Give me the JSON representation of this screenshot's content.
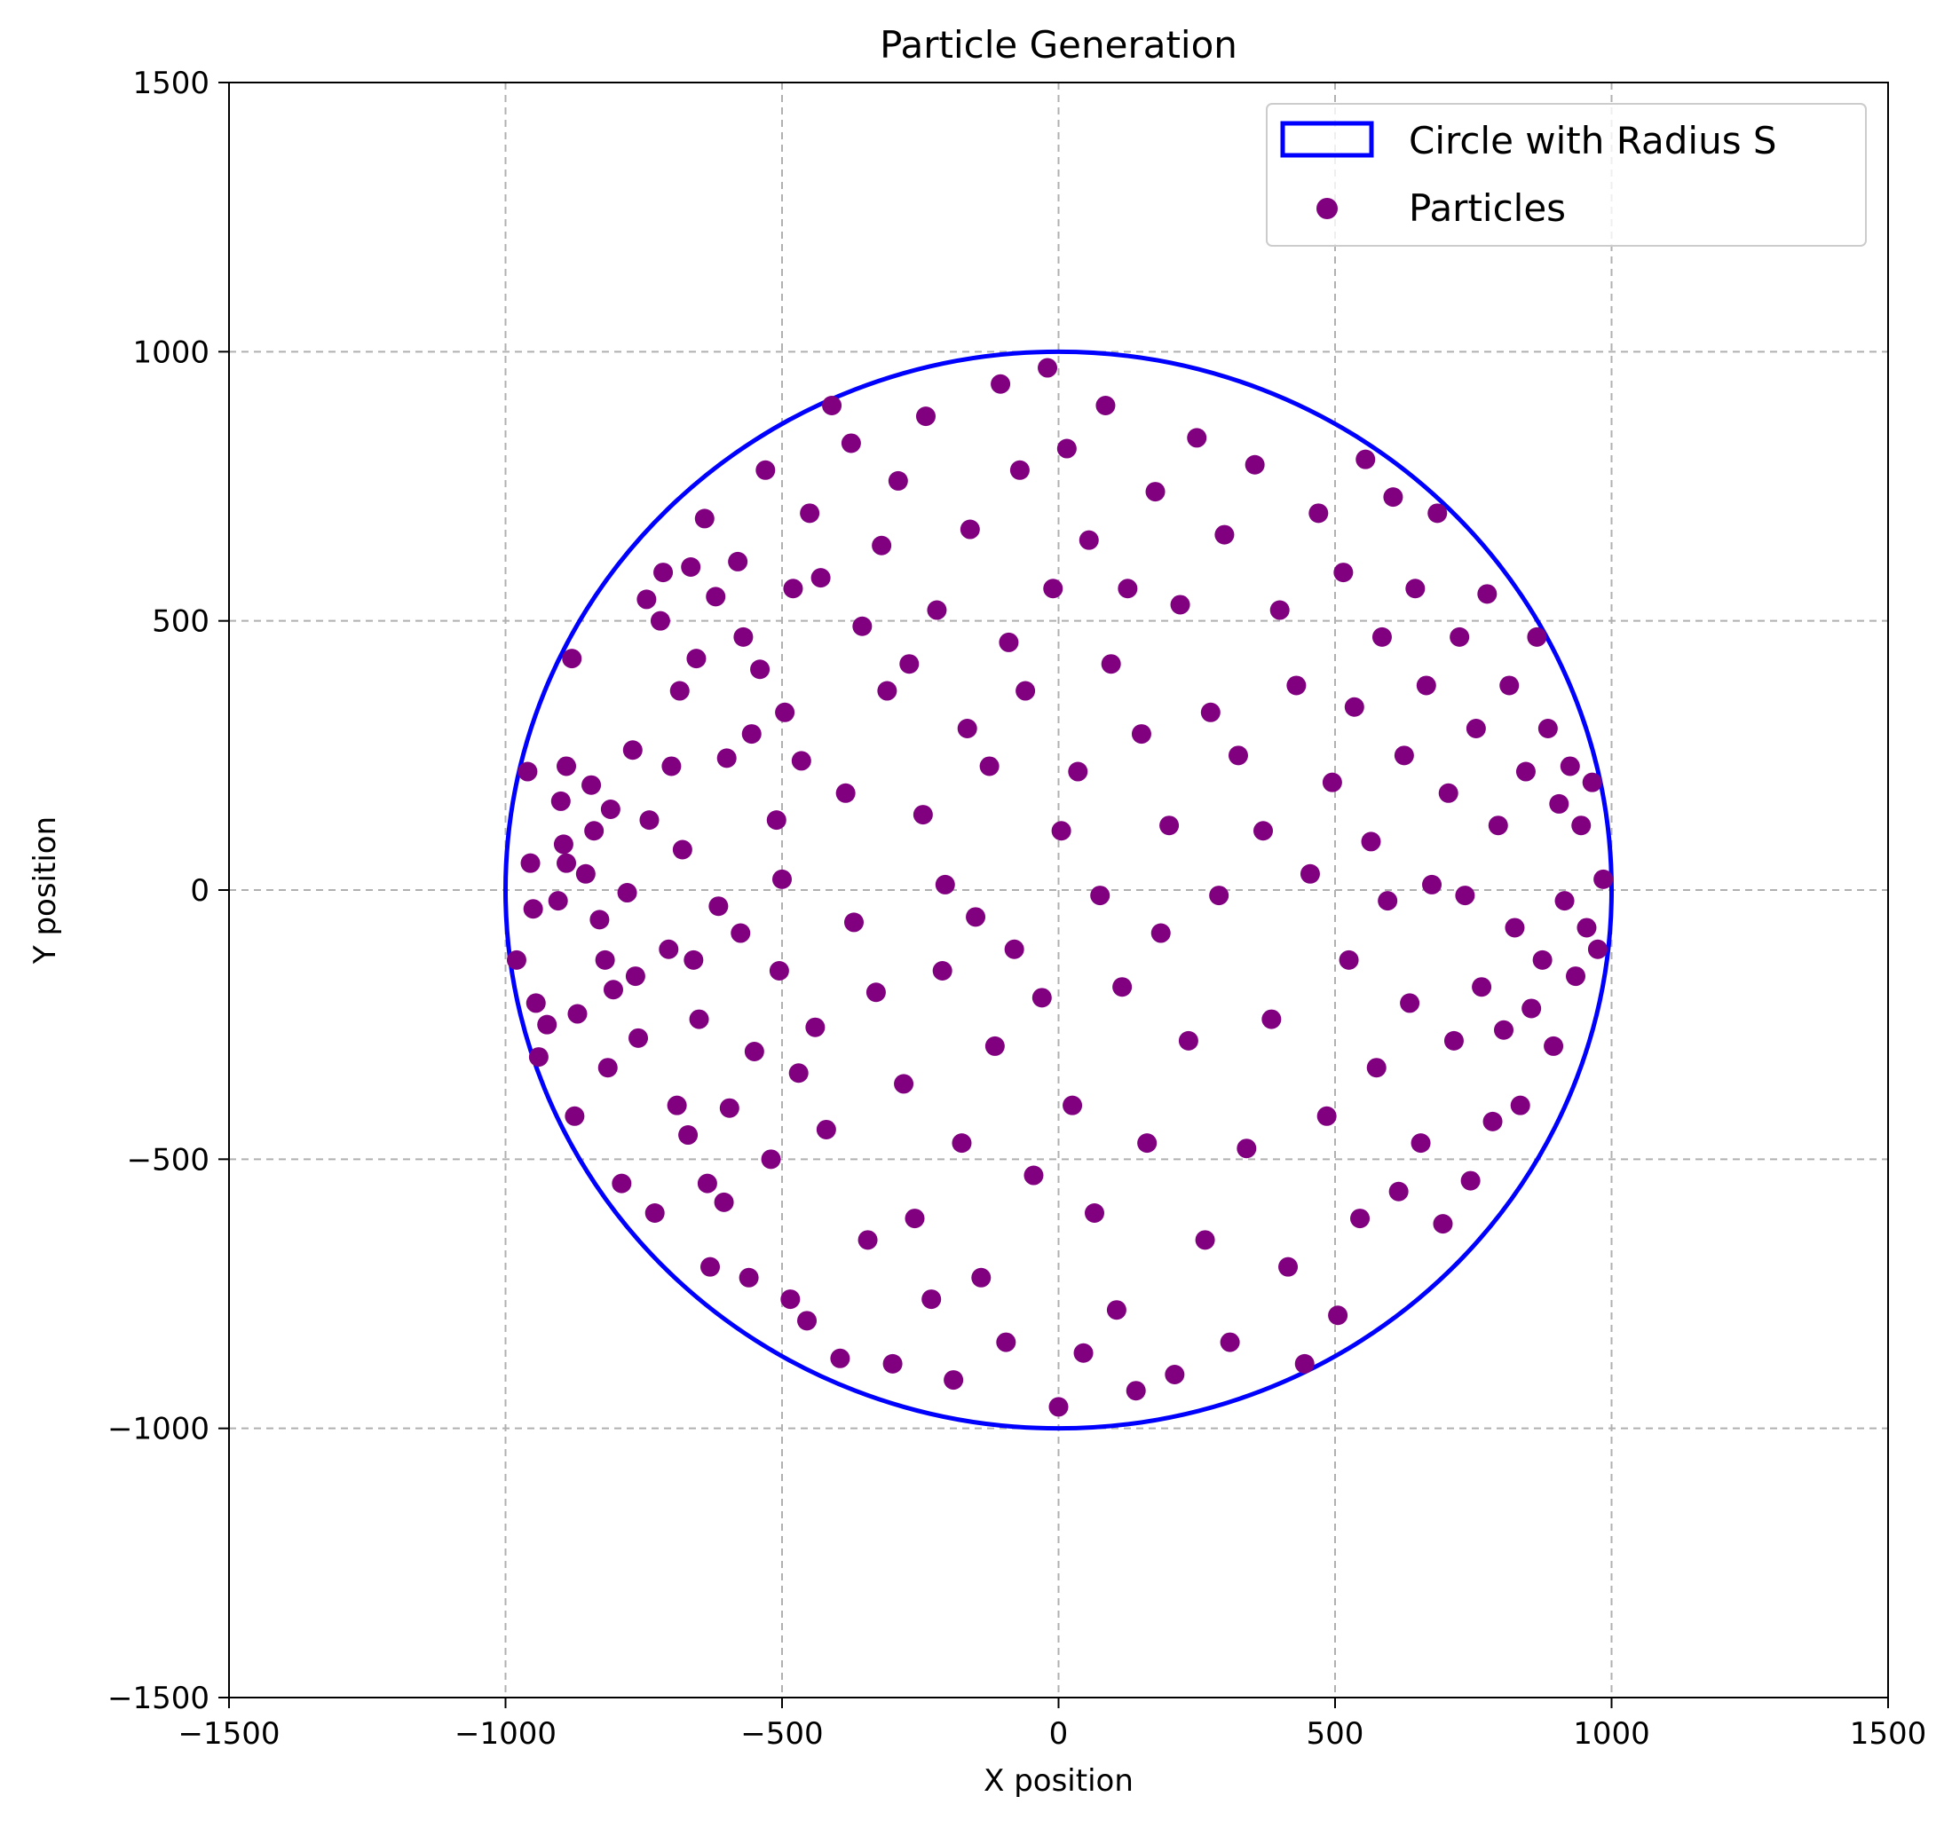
{
  "chart_data": {
    "type": "scatter",
    "title": "Particle Generation",
    "xlabel": "X position",
    "ylabel": "Y position",
    "xlim": [
      -1500,
      1500
    ],
    "ylim": [
      -1500,
      1500
    ],
    "xticks": [
      -1500,
      -1000,
      -500,
      0,
      500,
      1000,
      1500
    ],
    "yticks": [
      -1500,
      -1000,
      -500,
      0,
      500,
      1000,
      1500
    ],
    "xtick_labels": [
      "−1500",
      "−1000",
      "−500",
      "0",
      "500",
      "1000",
      "1500"
    ],
    "ytick_labels": [
      "−1500",
      "−1000",
      "−500",
      "0",
      "500",
      "1000",
      "1500"
    ],
    "grid": true,
    "legend_position": "top-right",
    "circle": {
      "name": "Circle with Radius S",
      "center": [
        0,
        0
      ],
      "radius": 1000,
      "color": "#0000ff"
    },
    "series": [
      {
        "name": "Particles",
        "color": "#800080",
        "marker": "circle",
        "points": [
          [
            -980,
            -130
          ],
          [
            -960,
            220
          ],
          [
            -955,
            50
          ],
          [
            -950,
            -35
          ],
          [
            -945,
            -210
          ],
          [
            -940,
            -310
          ],
          [
            -925,
            -250
          ],
          [
            -905,
            -20
          ],
          [
            -900,
            165
          ],
          [
            -895,
            85
          ],
          [
            -890,
            50
          ],
          [
            -890,
            230
          ],
          [
            -880,
            430
          ],
          [
            -875,
            -420
          ],
          [
            -870,
            -230
          ],
          [
            -855,
            30
          ],
          [
            -845,
            195
          ],
          [
            -840,
            110
          ],
          [
            -830,
            -55
          ],
          [
            -820,
            -130
          ],
          [
            -815,
            -330
          ],
          [
            -810,
            150
          ],
          [
            -805,
            -185
          ],
          [
            -790,
            -545
          ],
          [
            -780,
            -5
          ],
          [
            -770,
            260
          ],
          [
            -765,
            -160
          ],
          [
            -760,
            -275
          ],
          [
            -745,
            540
          ],
          [
            -740,
            130
          ],
          [
            -730,
            -600
          ],
          [
            -720,
            500
          ],
          [
            -715,
            590
          ],
          [
            -705,
            -110
          ],
          [
            -700,
            230
          ],
          [
            -690,
            -400
          ],
          [
            -685,
            370
          ],
          [
            -680,
            75
          ],
          [
            -670,
            -455
          ],
          [
            -665,
            600
          ],
          [
            -660,
            -130
          ],
          [
            -655,
            430
          ],
          [
            -650,
            -240
          ],
          [
            -640,
            690
          ],
          [
            -635,
            -545
          ],
          [
            -630,
            -700
          ],
          [
            -620,
            545
          ],
          [
            -615,
            -30
          ],
          [
            -605,
            -580
          ],
          [
            -600,
            245
          ],
          [
            -595,
            -405
          ],
          [
            -580,
            610
          ],
          [
            -575,
            -80
          ],
          [
            -570,
            470
          ],
          [
            -560,
            -720
          ],
          [
            -555,
            290
          ],
          [
            -550,
            -300
          ],
          [
            -540,
            410
          ],
          [
            -530,
            780
          ],
          [
            -520,
            -500
          ],
          [
            -510,
            130
          ],
          [
            -505,
            -150
          ],
          [
            -500,
            20
          ],
          [
            -495,
            330
          ],
          [
            -485,
            -760
          ],
          [
            -480,
            560
          ],
          [
            -470,
            -340
          ],
          [
            -465,
            240
          ],
          [
            -455,
            -800
          ],
          [
            -450,
            700
          ],
          [
            -440,
            -255
          ],
          [
            -430,
            580
          ],
          [
            -420,
            -445
          ],
          [
            -410,
            900
          ],
          [
            -395,
            -870
          ],
          [
            -385,
            180
          ],
          [
            -375,
            830
          ],
          [
            -370,
            -60
          ],
          [
            -355,
            490
          ],
          [
            -345,
            -650
          ],
          [
            -330,
            -190
          ],
          [
            -320,
            640
          ],
          [
            -310,
            370
          ],
          [
            -300,
            -880
          ],
          [
            -290,
            760
          ],
          [
            -280,
            -360
          ],
          [
            -270,
            420
          ],
          [
            -260,
            -610
          ],
          [
            -245,
            140
          ],
          [
            -240,
            880
          ],
          [
            -230,
            -760
          ],
          [
            -220,
            520
          ],
          [
            -210,
            -150
          ],
          [
            -205,
            10
          ],
          [
            -190,
            -910
          ],
          [
            -175,
            -470
          ],
          [
            -165,
            300
          ],
          [
            -160,
            670
          ],
          [
            -150,
            -50
          ],
          [
            -140,
            -720
          ],
          [
            -125,
            230
          ],
          [
            -115,
            -290
          ],
          [
            -105,
            940
          ],
          [
            -95,
            -840
          ],
          [
            -90,
            460
          ],
          [
            -80,
            -110
          ],
          [
            -70,
            780
          ],
          [
            -60,
            370
          ],
          [
            -45,
            -530
          ],
          [
            -30,
            -200
          ],
          [
            -20,
            970
          ],
          [
            -10,
            560
          ],
          [
            0,
            -960
          ],
          [
            5,
            110
          ],
          [
            15,
            820
          ],
          [
            25,
            -400
          ],
          [
            35,
            220
          ],
          [
            45,
            -860
          ],
          [
            55,
            650
          ],
          [
            65,
            -600
          ],
          [
            75,
            -10
          ],
          [
            85,
            900
          ],
          [
            95,
            420
          ],
          [
            105,
            -780
          ],
          [
            115,
            -180
          ],
          [
            125,
            560
          ],
          [
            140,
            -930
          ],
          [
            150,
            290
          ],
          [
            160,
            -470
          ],
          [
            175,
            740
          ],
          [
            185,
            -80
          ],
          [
            200,
            120
          ],
          [
            210,
            -900
          ],
          [
            220,
            530
          ],
          [
            235,
            -280
          ],
          [
            250,
            840
          ],
          [
            265,
            -650
          ],
          [
            275,
            330
          ],
          [
            290,
            -10
          ],
          [
            300,
            660
          ],
          [
            310,
            -840
          ],
          [
            325,
            250
          ],
          [
            340,
            -480
          ],
          [
            355,
            790
          ],
          [
            370,
            110
          ],
          [
            385,
            -240
          ],
          [
            400,
            520
          ],
          [
            415,
            -700
          ],
          [
            430,
            380
          ],
          [
            445,
            -880
          ],
          [
            455,
            30
          ],
          [
            470,
            700
          ],
          [
            485,
            -420
          ],
          [
            495,
            200
          ],
          [
            505,
            -790
          ],
          [
            515,
            590
          ],
          [
            525,
            -130
          ],
          [
            535,
            340
          ],
          [
            545,
            -610
          ],
          [
            555,
            800
          ],
          [
            565,
            90
          ],
          [
            575,
            -330
          ],
          [
            585,
            470
          ],
          [
            595,
            -20
          ],
          [
            605,
            730
          ],
          [
            615,
            -560
          ],
          [
            625,
            250
          ],
          [
            635,
            -210
          ],
          [
            645,
            560
          ],
          [
            655,
            -470
          ],
          [
            665,
            380
          ],
          [
            675,
            10
          ],
          [
            685,
            700
          ],
          [
            695,
            -620
          ],
          [
            705,
            180
          ],
          [
            715,
            -280
          ],
          [
            725,
            470
          ],
          [
            735,
            -10
          ],
          [
            745,
            -540
          ],
          [
            755,
            300
          ],
          [
            765,
            -180
          ],
          [
            775,
            550
          ],
          [
            785,
            -430
          ],
          [
            795,
            120
          ],
          [
            805,
            -260
          ],
          [
            815,
            380
          ],
          [
            825,
            -70
          ],
          [
            835,
            -400
          ],
          [
            845,
            220
          ],
          [
            855,
            -220
          ],
          [
            865,
            470
          ],
          [
            875,
            -130
          ],
          [
            885,
            300
          ],
          [
            895,
            -290
          ],
          [
            905,
            160
          ],
          [
            915,
            -20
          ],
          [
            925,
            230
          ],
          [
            935,
            -160
          ],
          [
            945,
            120
          ],
          [
            955,
            -70
          ],
          [
            965,
            200
          ],
          [
            975,
            -110
          ],
          [
            985,
            20
          ]
        ]
      }
    ]
  }
}
